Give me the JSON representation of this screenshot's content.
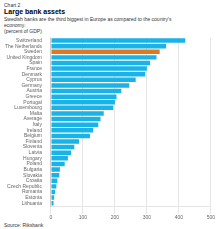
{
  "chart_data": {
    "type": "bar",
    "orientation": "horizontal",
    "title": "Large bank assets",
    "subtitle": "Swedish banks are the third biggest in Europe as compared to the country's\neconomy.",
    "xlabel": "(percent of GDP)",
    "annotations": [
      "Chart 2",
      "Source: Riksbank"
    ],
    "categories": [
      "Switzerland",
      "The Netherlands",
      "Sweden",
      "United Kingdom",
      "Spain",
      "France",
      "Denmark",
      "Cyprus",
      "Germany",
      "Austria",
      "Greece",
      "Portugal",
      "Luxembourg",
      "Malta",
      "Average",
      "Italy",
      "Ireland",
      "Belgium",
      "Finland",
      "Slovenia",
      "Latvia",
      "Hungary",
      "Poland",
      "Bulgaria",
      "Slovakia",
      "Croatia",
      "Czech Republic",
      "Romania",
      "Estonia",
      "Lithuania"
    ],
    "values": [
      420,
      360,
      340,
      330,
      310,
      300,
      295,
      265,
      245,
      220,
      205,
      200,
      195,
      165,
      155,
      148,
      132,
      122,
      88,
      73,
      63,
      53,
      43,
      28,
      26,
      20,
      17,
      13,
      10,
      8
    ],
    "colors": [
      "#1ab3e8",
      "#1ab3e8",
      "#e07820",
      "#1ab3e8",
      "#1ab3e8",
      "#1ab3e8",
      "#1ab3e8",
      "#1ab3e8",
      "#1ab3e8",
      "#1ab3e8",
      "#1ab3e8",
      "#1ab3e8",
      "#1ab3e8",
      "#1ab3e8",
      "#1ab3e8",
      "#1ab3e8",
      "#1ab3e8",
      "#1ab3e8",
      "#1ab3e8",
      "#1ab3e8",
      "#1ab3e8",
      "#1ab3e8",
      "#1ab3e8",
      "#1ab3e8",
      "#1ab3e8",
      "#1ab3e8",
      "#1ab3e8",
      "#1ab3e8",
      "#1ab3e8",
      "#1ab3e8"
    ],
    "xlim": [
      0,
      500
    ],
    "xticks": [
      0,
      100,
      200,
      300,
      400,
      500
    ],
    "grid": true
  }
}
